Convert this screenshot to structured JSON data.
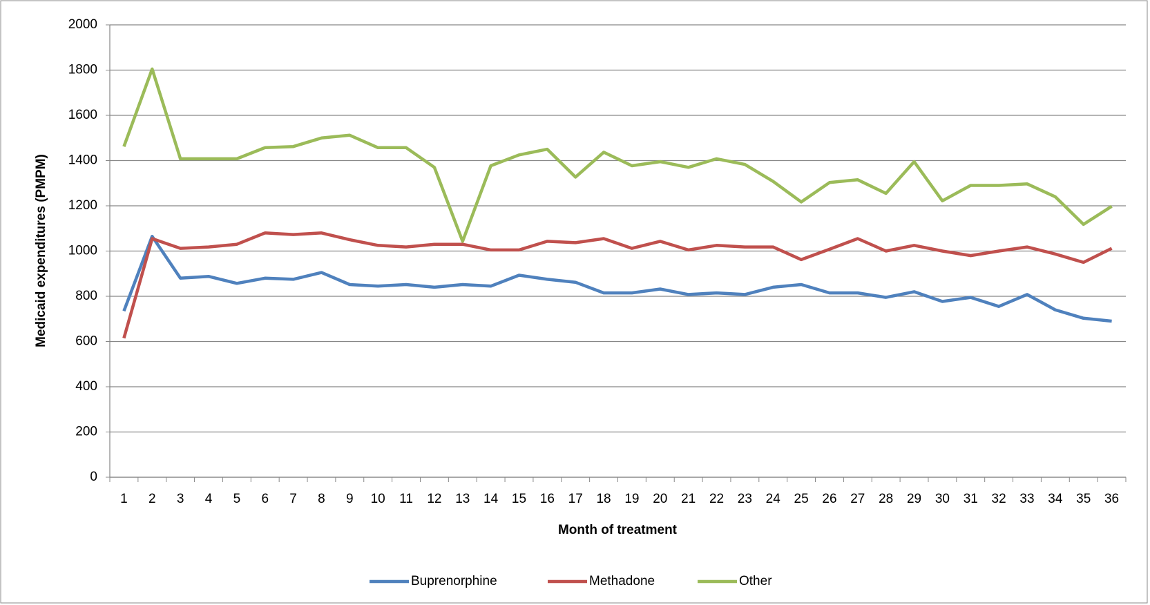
{
  "chart_data": {
    "type": "line",
    "x_label": "Month of treatment",
    "y_label": "Medicaid expenditures (PMPM)",
    "categories": [
      1,
      2,
      3,
      4,
      5,
      6,
      7,
      8,
      9,
      10,
      11,
      12,
      13,
      14,
      15,
      16,
      17,
      18,
      19,
      20,
      21,
      22,
      23,
      24,
      25,
      26,
      27,
      28,
      29,
      30,
      31,
      32,
      33,
      34,
      35,
      36
    ],
    "series": [
      {
        "name": "Buprenorphine",
        "color": "#4f81bd",
        "values": [
          735,
          1065,
          880,
          888,
          857,
          880,
          875,
          905,
          852,
          845,
          852,
          840,
          852,
          845,
          893,
          875,
          862,
          815,
          815,
          832,
          808,
          815,
          808,
          840,
          852,
          815,
          815,
          795,
          820,
          777,
          795,
          755,
          808,
          740,
          703,
          690
        ]
      },
      {
        "name": "Methadone",
        "color": "#c0504d",
        "values": [
          615,
          1055,
          1012,
          1018,
          1030,
          1080,
          1073,
          1080,
          1050,
          1025,
          1018,
          1030,
          1030,
          1005,
          1005,
          1043,
          1037,
          1055,
          1012,
          1043,
          1005,
          1025,
          1018,
          1018,
          962,
          1008,
          1055,
          1000,
          1025,
          1000,
          980,
          1000,
          1018,
          987,
          950,
          1012
        ]
      },
      {
        "name": "Other",
        "color": "#9bbb59",
        "values": [
          1462,
          1805,
          1408,
          1408,
          1408,
          1457,
          1462,
          1500,
          1512,
          1457,
          1457,
          1370,
          1043,
          1377,
          1425,
          1450,
          1327,
          1437,
          1377,
          1395,
          1370,
          1408,
          1383,
          1308,
          1217,
          1303,
          1315,
          1255,
          1395,
          1222,
          1290,
          1290,
          1297,
          1240,
          1118,
          1198
        ]
      }
    ],
    "ylim": [
      0,
      2000
    ],
    "yticks": [
      0,
      200,
      400,
      600,
      800,
      1000,
      1200,
      1400,
      1600,
      1800,
      2000
    ],
    "grid": true,
    "legend": "bottom"
  }
}
